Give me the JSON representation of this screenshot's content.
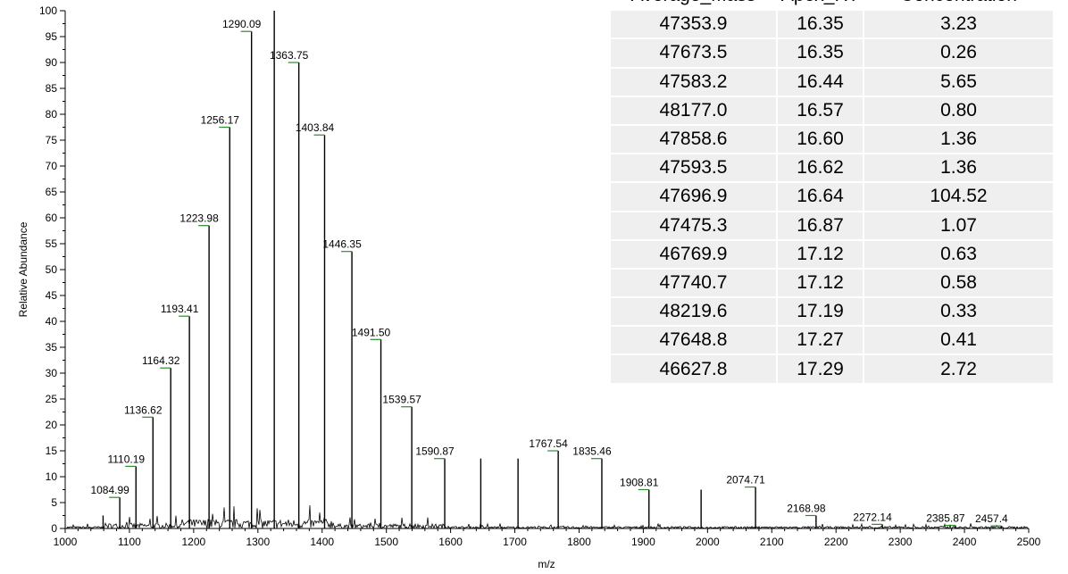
{
  "chart_data": {
    "type": "line",
    "xlabel": "m/z",
    "ylabel": "Relative Abundance",
    "xlim": [
      1000,
      2500
    ],
    "ylim": [
      0,
      100
    ],
    "x_ticks": [
      "1000",
      "1100",
      "1200",
      "1300",
      "1400",
      "1500",
      "1600",
      "1700",
      "1800",
      "1900",
      "2000",
      "2100",
      "2200",
      "2300",
      "2400",
      "2500"
    ],
    "y_ticks": [
      "0",
      "5",
      "10",
      "15",
      "20",
      "25",
      "30",
      "35",
      "40",
      "45",
      "50",
      "55",
      "60",
      "65",
      "70",
      "75",
      "80",
      "85",
      "90",
      "95",
      "100"
    ],
    "peaks": [
      {
        "mz": 1059.0,
        "abundance": 2.5,
        "label": ""
      },
      {
        "mz": 1084.99,
        "abundance": 6.0,
        "label": "1084.99"
      },
      {
        "mz": 1110.19,
        "abundance": 12.0,
        "label": "1110.19"
      },
      {
        "mz": 1136.62,
        "abundance": 21.5,
        "label": "1136.62"
      },
      {
        "mz": 1164.32,
        "abundance": 31.0,
        "label": "1164.32"
      },
      {
        "mz": 1193.41,
        "abundance": 41.0,
        "label": "1193.41"
      },
      {
        "mz": 1223.98,
        "abundance": 58.5,
        "label": "1223.98"
      },
      {
        "mz": 1256.17,
        "abundance": 77.5,
        "label": "1256.17"
      },
      {
        "mz": 1290.09,
        "abundance": 96.0,
        "label": "1290.09"
      },
      {
        "mz": 1325.5,
        "abundance": 100.0,
        "label": ""
      },
      {
        "mz": 1363.75,
        "abundance": 90.0,
        "label": "1363.75"
      },
      {
        "mz": 1403.84,
        "abundance": 76.0,
        "label": "1403.84"
      },
      {
        "mz": 1446.35,
        "abundance": 53.5,
        "label": "1446.35"
      },
      {
        "mz": 1491.5,
        "abundance": 36.5,
        "label": "1491.50"
      },
      {
        "mz": 1539.57,
        "abundance": 23.5,
        "label": "1539.57"
      },
      {
        "mz": 1590.87,
        "abundance": 13.5,
        "label": "1590.87"
      },
      {
        "mz": 1647.0,
        "abundance": 13.5,
        "label": ""
      },
      {
        "mz": 1705.0,
        "abundance": 13.5,
        "label": ""
      },
      {
        "mz": 1767.54,
        "abundance": 15.0,
        "label": "1767.54"
      },
      {
        "mz": 1835.46,
        "abundance": 13.5,
        "label": "1835.46"
      },
      {
        "mz": 1908.81,
        "abundance": 7.5,
        "label": "1908.81"
      },
      {
        "mz": 1990.0,
        "abundance": 7.5,
        "label": ""
      },
      {
        "mz": 2074.71,
        "abundance": 8.0,
        "label": "2074.71"
      },
      {
        "mz": 2168.98,
        "abundance": 2.5,
        "label": "2168.98"
      },
      {
        "mz": 2272.14,
        "abundance": 0.8,
        "label": "2272.14"
      },
      {
        "mz": 2385.87,
        "abundance": 0.6,
        "label": "2385.87"
      },
      {
        "mz": 2457.4,
        "abundance": 0.5,
        "label": "2457.4"
      }
    ],
    "table": {
      "columns": [
        "Average_Mass",
        "Apex_RT",
        "Concentration"
      ],
      "rows": [
        [
          "47353.9",
          "16.35",
          "3.23"
        ],
        [
          "47673.5",
          "16.35",
          "0.26"
        ],
        [
          "47583.2",
          "16.44",
          "5.65"
        ],
        [
          "48177.0",
          "16.57",
          "0.80"
        ],
        [
          "47858.6",
          "16.60",
          "1.36"
        ],
        [
          "47593.5",
          "16.62",
          "1.36"
        ],
        [
          "47696.9",
          "16.64",
          "104.52"
        ],
        [
          "47475.3",
          "16.87",
          "1.07"
        ],
        [
          "46769.9",
          "17.12",
          "0.63"
        ],
        [
          "47740.7",
          "17.12",
          "0.58"
        ],
        [
          "48219.6",
          "17.19",
          "0.33"
        ],
        [
          "47648.8",
          "17.27",
          "0.41"
        ],
        [
          "46627.8",
          "17.29",
          "2.72"
        ]
      ]
    },
    "colors": {
      "trace": "#000000",
      "label_marker": "#2e8b2e",
      "table_cell": "#efefef"
    }
  }
}
